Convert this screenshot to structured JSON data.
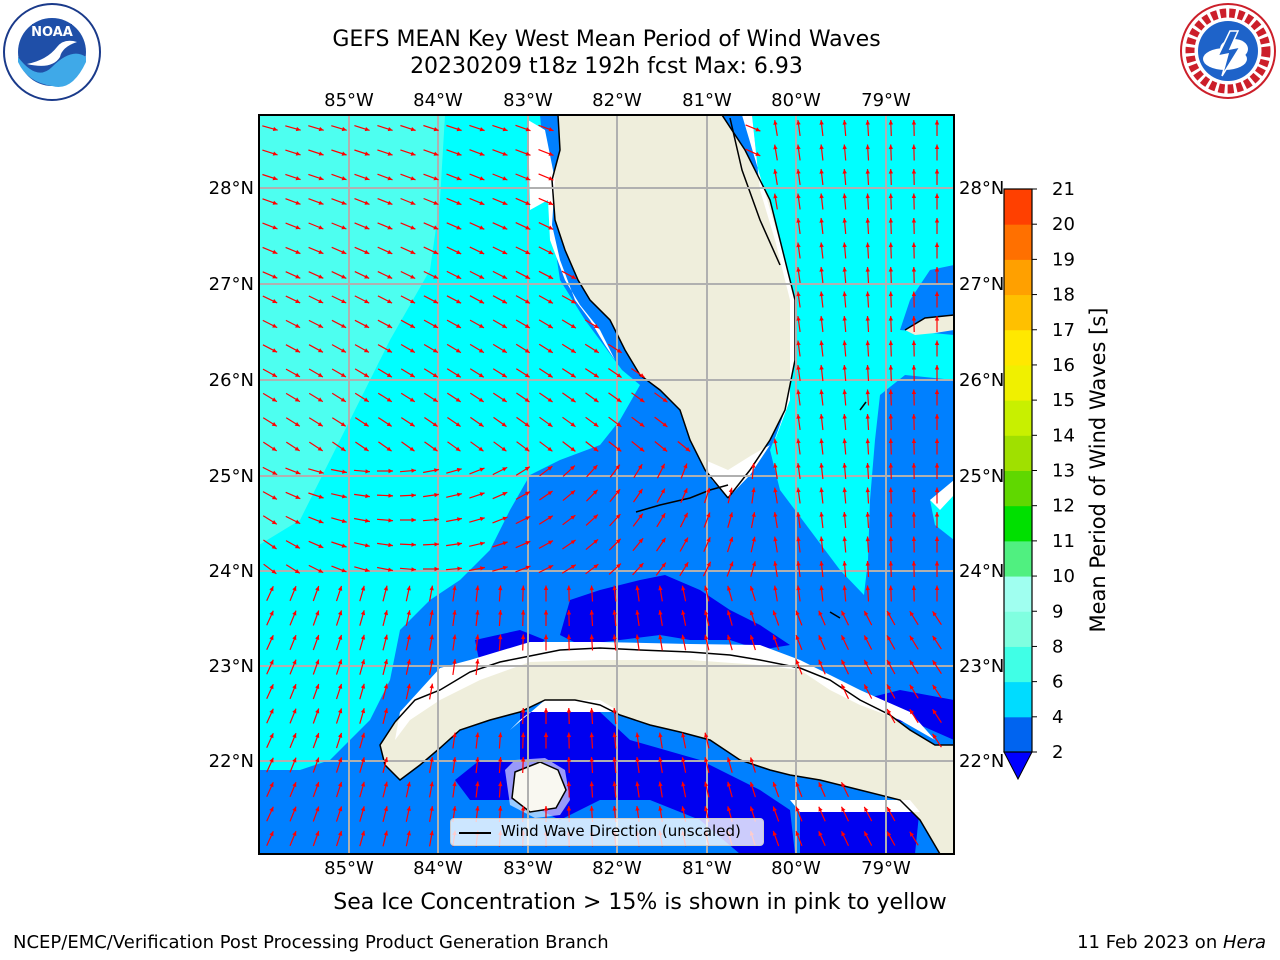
{
  "title": {
    "line1": "GEFS MEAN Key West Mean Period of Wind Waves",
    "line2": "20230209 t18z 192h fcst   Max: 6.93"
  },
  "logos": {
    "left": "noaa-logo",
    "right": "nws-logo"
  },
  "map": {
    "lon_ticks": [
      "85°W",
      "84°W",
      "83°W",
      "82°W",
      "81°W",
      "80°W",
      "79°W"
    ],
    "lat_ticks": [
      "28°N",
      "27°N",
      "26°N",
      "25°N",
      "24°N",
      "23°N",
      "22°N"
    ],
    "colors": {
      "land": "#efeedc",
      "cyan": "#00ffff",
      "light_cyan": "#4dfff0",
      "blue": "#0080ff",
      "dark_blue": "#0000f0",
      "arrow": "#ff0000",
      "grid": "#b0b0b0"
    },
    "legend_label": "Wind Wave Direction (unscaled)"
  },
  "colorbar": {
    "label": "Mean Period of Wind Waves [s]",
    "ticks": [
      "2",
      "4",
      "6",
      "8",
      "9",
      "10",
      "11",
      "12",
      "13",
      "14",
      "15",
      "16",
      "17",
      "18",
      "19",
      "20",
      "21"
    ],
    "colors": [
      "#0064f0",
      "#00dcff",
      "#40ffe6",
      "#80ffe0",
      "#a0fff0",
      "#50f080",
      "#00e000",
      "#60d800",
      "#a0e000",
      "#c8f000",
      "#f0f000",
      "#ffe800",
      "#ffc000",
      "#ffa000",
      "#ff7000",
      "#ff4000",
      "#ff0000"
    ],
    "extend_color": "#0000ff"
  },
  "note": "Sea Ice Concentration > 15% is shown in pink to yellow",
  "footer": {
    "left": "NCEP/EMC/Verification Post Processing Product Generation Branch",
    "date": "11 Feb 2023 on ",
    "machine": "Hera"
  }
}
